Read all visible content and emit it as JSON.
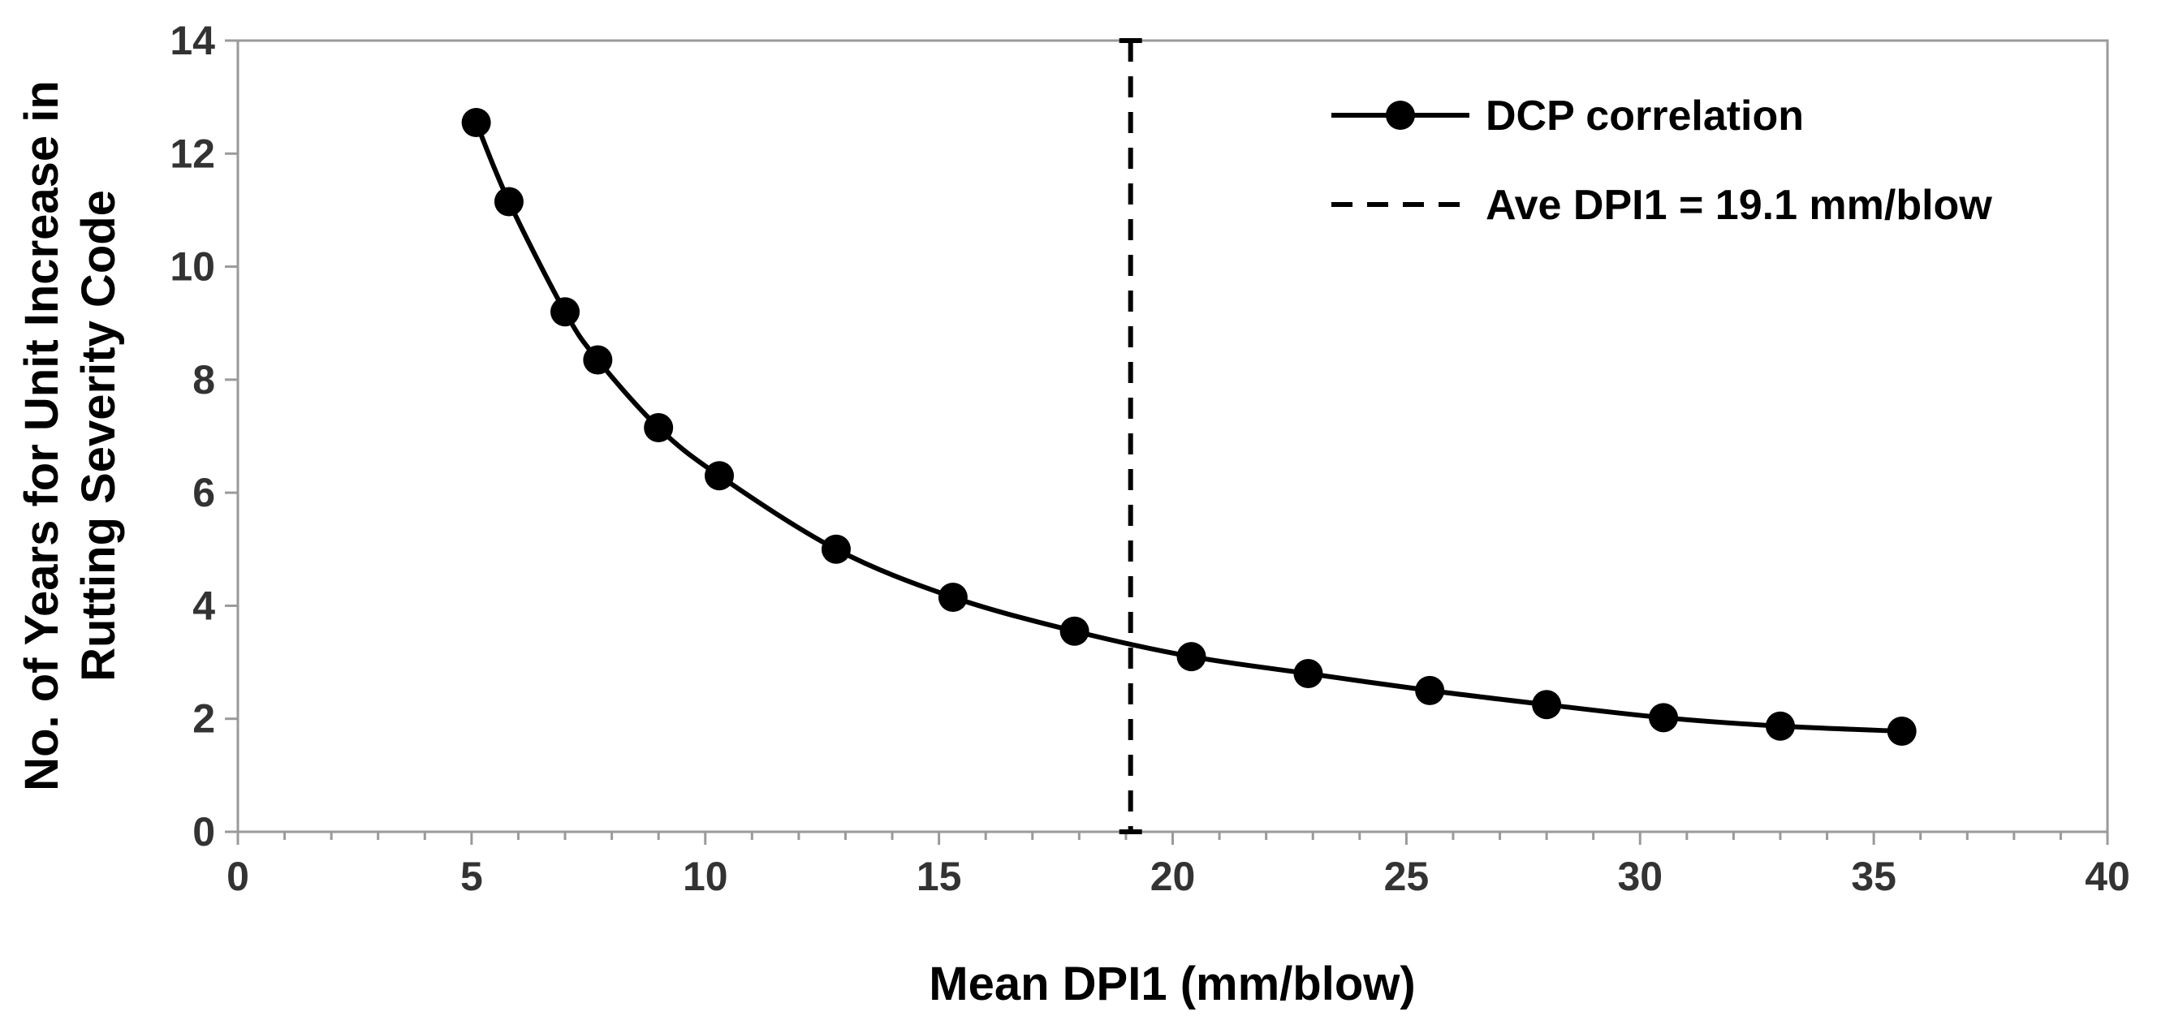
{
  "chart_data": {
    "type": "line",
    "title": "",
    "xlabel": "Mean DPI1 (mm/blow)",
    "ylabel_lines": [
      "No. of Years for Unit Increase in",
      "Rutting Severity Code"
    ],
    "xlim": [
      0,
      40
    ],
    "ylim": [
      0,
      14
    ],
    "x_ticks": [
      0,
      5,
      10,
      15,
      20,
      25,
      30,
      35,
      40
    ],
    "y_ticks": [
      0,
      2,
      4,
      6,
      8,
      10,
      12,
      14
    ],
    "grid": false,
    "legend_position": "top-right",
    "series": [
      {
        "name": "DCP correlation",
        "style": "solid-line-with-circle-markers",
        "color": "#000000",
        "x": [
          5.1,
          5.8,
          7.0,
          7.7,
          9.0,
          10.3,
          12.8,
          15.3,
          17.9,
          20.4,
          22.9,
          25.5,
          28.0,
          30.5,
          33.0,
          35.6
        ],
        "y": [
          12.55,
          11.15,
          9.2,
          8.35,
          7.15,
          6.3,
          5.0,
          4.15,
          3.55,
          3.1,
          2.8,
          2.5,
          2.25,
          2.02,
          1.87,
          1.78
        ]
      }
    ],
    "reference_lines": [
      {
        "name": "Ave DPI1 = 19.1 mm/blow",
        "orientation": "vertical",
        "x": 19.1,
        "style": "dashed",
        "color": "#000000"
      }
    ]
  }
}
